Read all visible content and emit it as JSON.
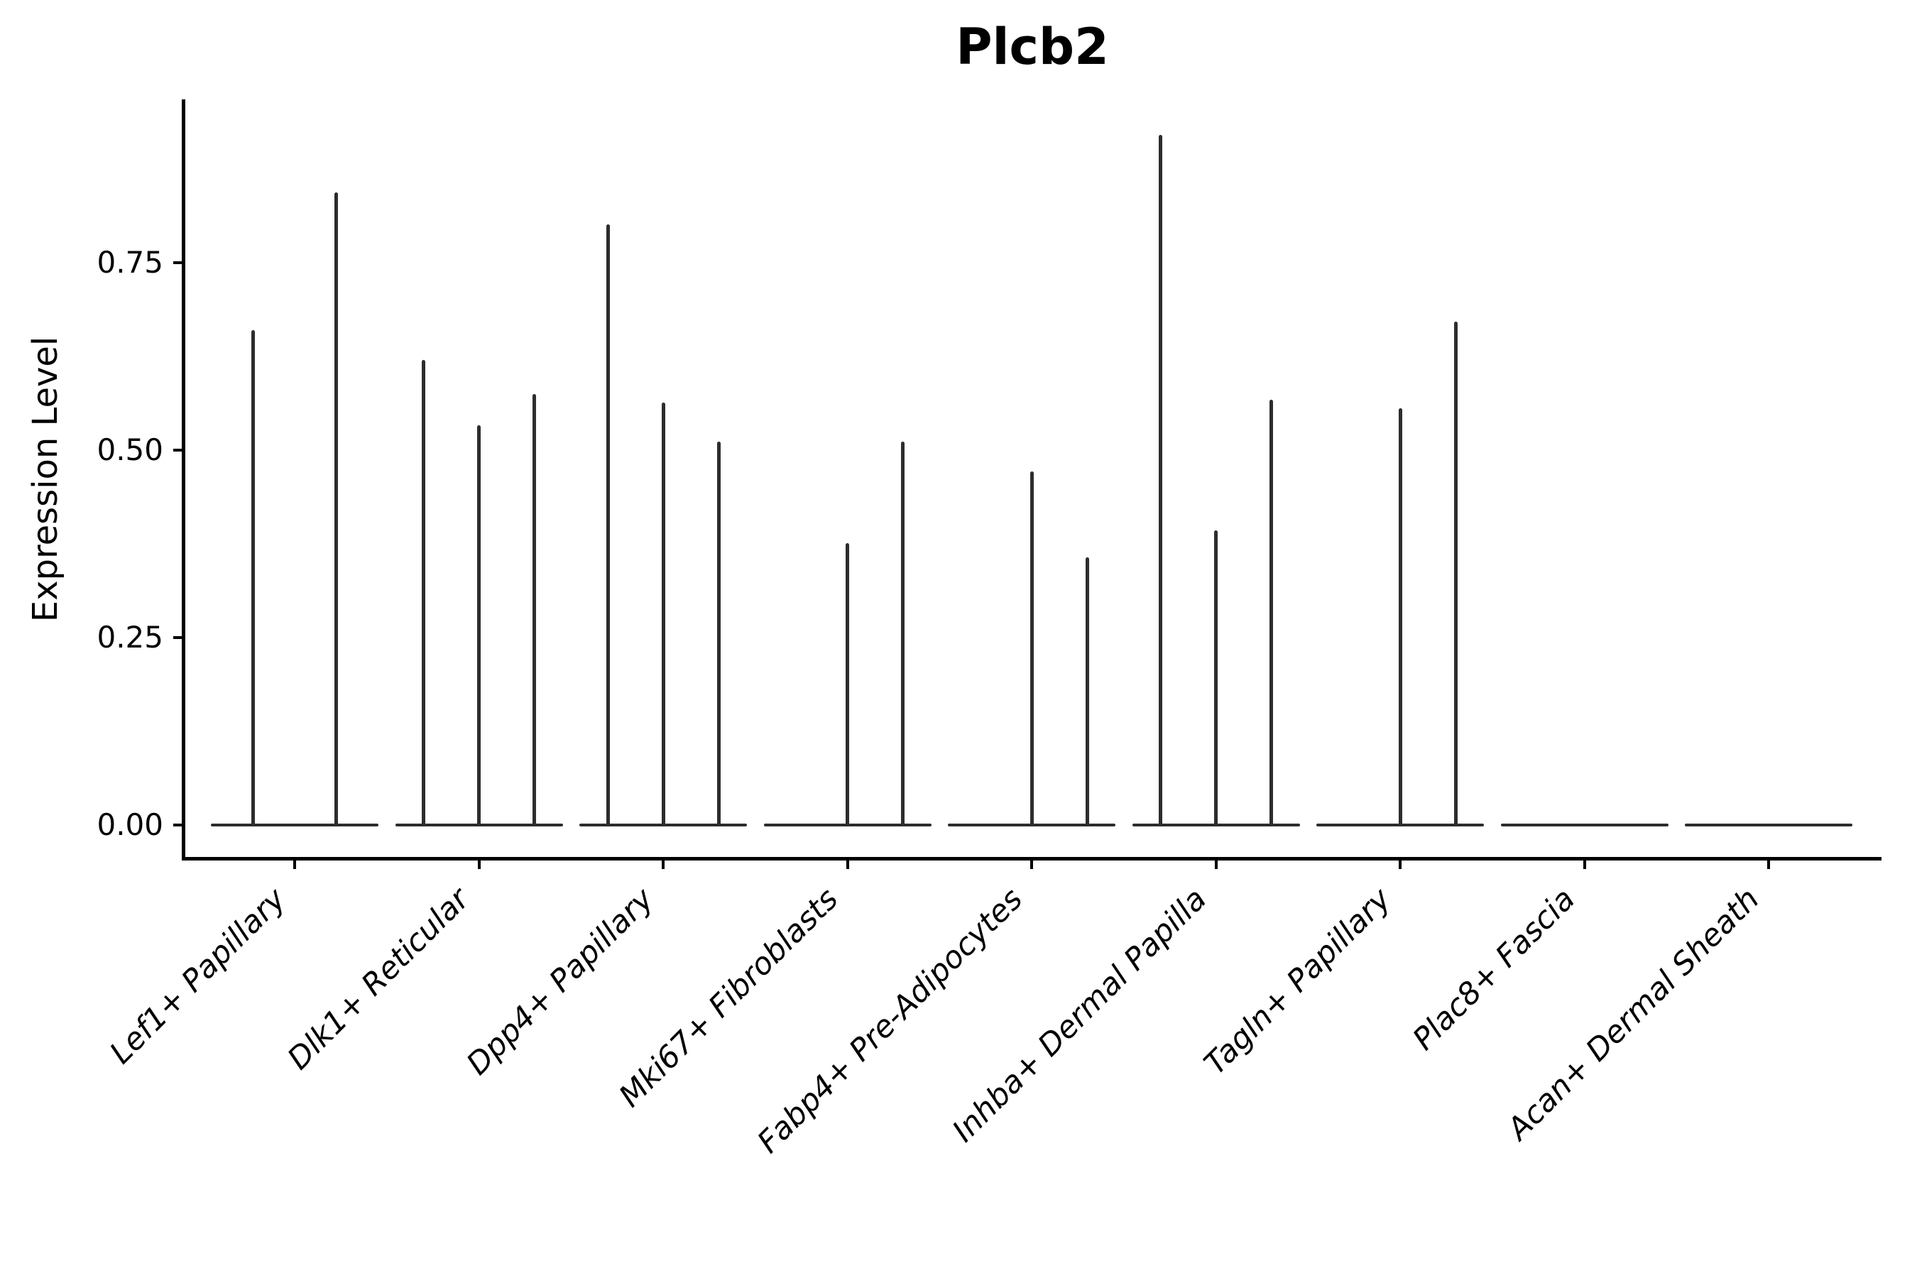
{
  "title": "Plcb2",
  "axes": {
    "ylabel": "Expression Level"
  },
  "chart_data": {
    "type": "violin",
    "title": "Plcb2",
    "xlabel": "",
    "ylabel": "Expression Level",
    "ylim": [
      -0.045,
      0.969
    ],
    "yticks": [
      0,
      0.25,
      0.5,
      0.75
    ],
    "ytick_labels": [
      "0.00",
      "0.25",
      "0.50",
      "0.75"
    ],
    "grid": false,
    "legend": "none",
    "colors": {
      "violin_line": "#2d2d2d",
      "axis": "#000000",
      "background": "#ffffff"
    },
    "categories": [
      "Lef1+ Papillary",
      "Dlk1+ Reticular",
      "Dpp4+ Papillary",
      "Mki67+ Fibroblasts",
      "Fabp4+ Pre-Adipocytes",
      "Inhba+ Dermal Papilla",
      "Tagln+ Papillary",
      "Plac8+ Fascia",
      "Acan+ Dermal Sheath"
    ],
    "series": [
      {
        "category": "Lef1+ Papillary",
        "violin_maxima": [
          0.66,
          0.844
        ]
      },
      {
        "category": "Dlk1+ Reticular",
        "violin_maxima": [
          0.621,
          0.533,
          0.575
        ]
      },
      {
        "category": "Dpp4+ Papillary",
        "violin_maxima": [
          0.802,
          0.564,
          0.512
        ]
      },
      {
        "category": "Mki67+ Fibroblasts",
        "violin_maxima": [
          0,
          0.376,
          0.512
        ]
      },
      {
        "category": "Fabp4+ Pre-Adipocytes",
        "violin_maxima": [
          0,
          0.472,
          0.357
        ]
      },
      {
        "category": "Inhba+ Dermal Papilla",
        "violin_maxima": [
          0.921,
          0.393,
          0.568
        ]
      },
      {
        "category": "Tagln+ Papillary",
        "violin_maxima": [
          0,
          0.556,
          0.672
        ]
      },
      {
        "category": "Plac8+ Fascia",
        "violin_maxima": [
          0,
          0,
          0
        ]
      },
      {
        "category": "Acan+ Dermal Sheath",
        "violin_maxima": [
          0,
          0,
          0
        ]
      }
    ]
  }
}
